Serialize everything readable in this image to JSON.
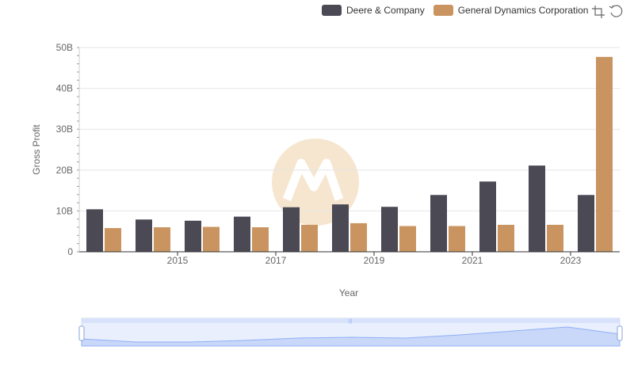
{
  "colors": {
    "deere": "#4a4954",
    "gd": "#c99460",
    "grid": "#e6e6e6",
    "axis": "#333333",
    "watermark": "#f6e6cf",
    "slider": "#d8e3fb",
    "slider_line": "#8fb0f7"
  },
  "toolbar": {
    "zoom_icon": "zoom-icon",
    "restore_icon": "restore-icon"
  },
  "chart_data": {
    "type": "bar",
    "categories": [
      "2014",
      "2015",
      "2016",
      "2017",
      "2018",
      "2019",
      "2020",
      "2021",
      "2022",
      "2023",
      "2024"
    ],
    "x_tick_labels": [
      "2015",
      "2017",
      "2019",
      "2021",
      "2023"
    ],
    "series": [
      {
        "name": "Deere & Company",
        "values": [
          10.4,
          7.9,
          7.6,
          8.6,
          10.9,
          11.6,
          11.0,
          13.9,
          17.2,
          21.1,
          13.9
        ]
      },
      {
        "name": "General Dynamics Corporation",
        "values": [
          5.8,
          6.0,
          6.1,
          6.0,
          6.6,
          7.0,
          6.3,
          6.3,
          6.6,
          6.6,
          47.7
        ]
      }
    ],
    "xlabel": "Year",
    "ylabel": "Gross Profit",
    "ylim": [
      0,
      50
    ],
    "y_ticks": [
      0,
      10,
      20,
      30,
      40,
      50
    ],
    "y_tick_labels": [
      "0",
      "10B",
      "20B",
      "30B",
      "40B",
      "50B"
    ],
    "grid": true,
    "legend_position": "top-right"
  }
}
